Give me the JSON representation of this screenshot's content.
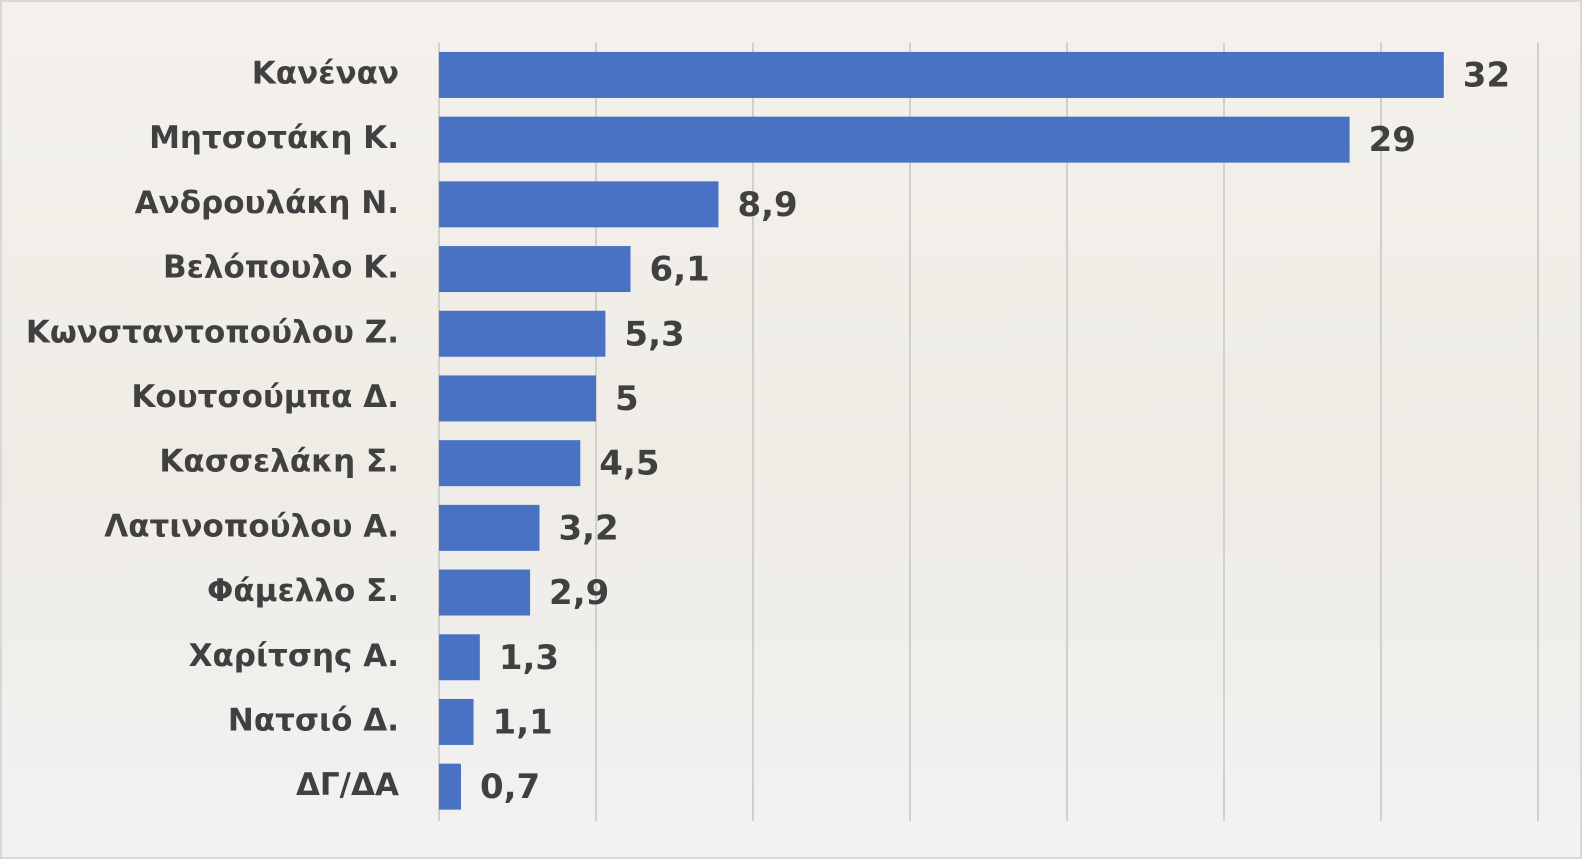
{
  "chart_data": {
    "type": "bar",
    "orientation": "horizontal",
    "categories": [
      "Κανέναν",
      "Μητσοτάκη Κ.",
      "Ανδρουλάκη Ν.",
      "Βελόπουλο Κ.",
      "Κωνσταντοπούλου Ζ.",
      "Κουτσούμπα Δ.",
      "Κασσελάκη Σ.",
      "Λατινοπούλου Α.",
      "Φάμελλο Σ.",
      "Χαρίτσης Α.",
      "Νατσιό Δ.",
      "ΔΓ/ΔΑ"
    ],
    "values": [
      32,
      29,
      8.9,
      6.1,
      5.3,
      5,
      4.5,
      3.2,
      2.9,
      1.3,
      1.1,
      0.7
    ],
    "value_labels": [
      "32",
      "29",
      "8,9",
      "6,1",
      "5,3",
      "5",
      "4,5",
      "3,2",
      "2,9",
      "1,3",
      "1,1",
      "0,7"
    ],
    "color": "#4a72c4",
    "xlim": [
      0,
      35
    ],
    "xticks": [
      0,
      5,
      10,
      15,
      20,
      25,
      30,
      35
    ],
    "grid": true
  }
}
